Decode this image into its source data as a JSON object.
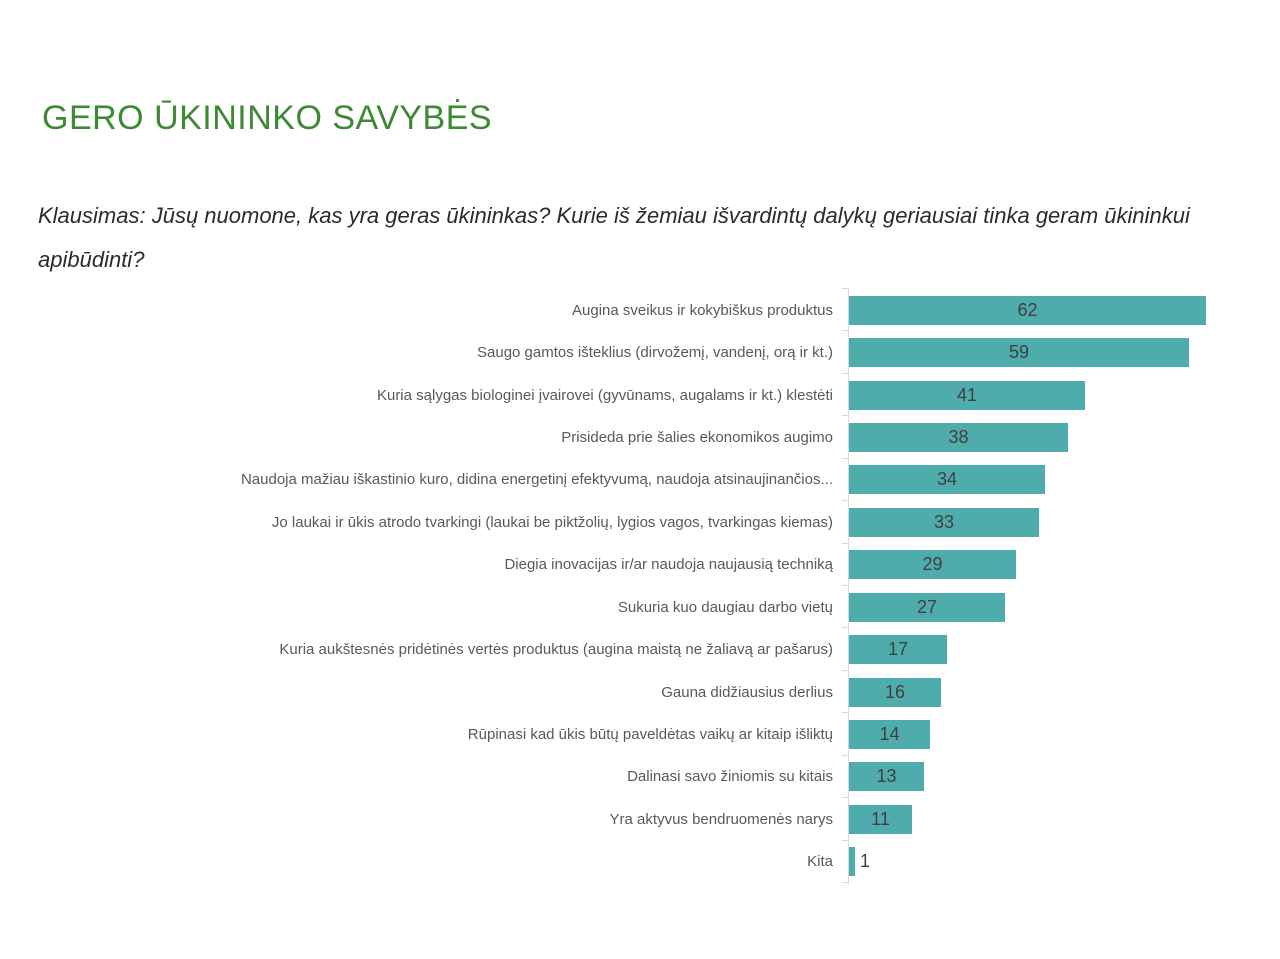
{
  "title": {
    "text": "GERO ŪKININKO SAVYBĖS",
    "color": "#3E8A34"
  },
  "question": {
    "text": "Klausimas: Jūsų nuomone, kas yra geras ūkininkas? Kurie iš žemiau išvardintų dalykų geriausiai tinka geram ūkininkui apibūdinti?"
  },
  "chart_data": {
    "type": "bar",
    "orientation": "horizontal",
    "title": "",
    "xlabel": "",
    "ylabel": "",
    "xlim": [
      0,
      65
    ],
    "grid": false,
    "legend": false,
    "value_labels": "inside-center",
    "bar_color": "#4FACAC",
    "value_label_color": "#404040",
    "category_label_color": "#595959",
    "axis_line_color": "#D9D9D9",
    "categories": [
      "Augina sveikus ir kokybiškus produktus",
      "Saugo gamtos išteklius (dirvožemį, vandenį, orą ir kt.)",
      "Kuria sąlygas biologinei įvairovei (gyvūnams, augalams ir kt.) klestėti",
      "Prisideda prie šalies ekonomikos augimo",
      "Naudoja mažiau iškastinio kuro, didina energetinį efektyvumą, naudoja atsinaujinančios...",
      "Jo laukai ir ūkis atrodo tvarkingi (laukai be piktžolių, lygios vagos, tvarkingas kiemas)",
      "Diegia inovacijas ir/ar naudoja naujausią techniką",
      "Sukuria kuo daugiau darbo vietų",
      "Kuria aukštesnės pridėtinės vertės produktus (augina maistą ne žaliavą ar pašarus)",
      "Gauna didžiausius derlius",
      "Rūpinasi kad ūkis būtų paveldėtas vaikų ar kitaip išliktų",
      "Dalinasi savo žiniomis su kitais",
      "Yra aktyvus bendruomenės narys",
      "Kita"
    ],
    "values": [
      62,
      59,
      41,
      38,
      34,
      33,
      29,
      27,
      17,
      16,
      14,
      13,
      11,
      1
    ]
  }
}
